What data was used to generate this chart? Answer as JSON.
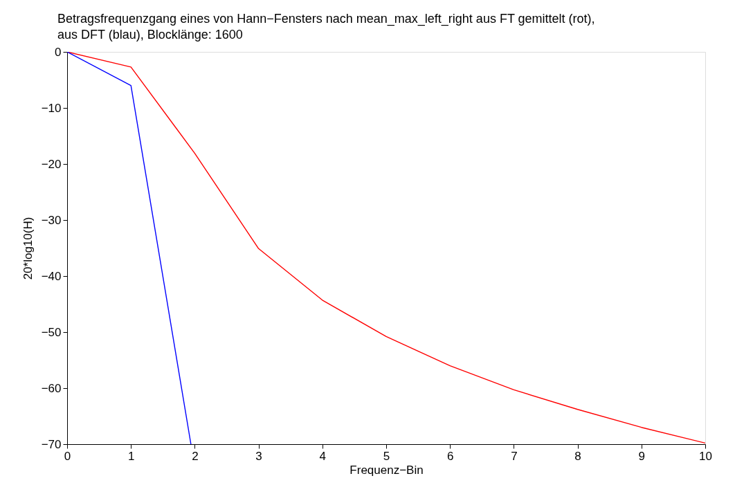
{
  "chart_data": {
    "type": "line",
    "title": "Betragsfrequenzgang eines von Hann−Fensters nach mean_max_left_right aus FT gemittelt (rot),\n aus DFT (blau), Blocklänge: 1600",
    "xlabel": "Frequenz−Bin",
    "ylabel": "20*log10(H)",
    "x": [
      0,
      1,
      2,
      3,
      4,
      5,
      6,
      7,
      8,
      9,
      10
    ],
    "series": [
      {
        "color": "#ff0000",
        "values": [
          0,
          -2.7,
          -18.1,
          -35.1,
          -44.3,
          -50.8,
          -56.0,
          -60.3,
          -63.8,
          -67.0,
          -69.8
        ]
      },
      {
        "color": "#0000ff",
        "x": [
          0,
          1,
          1.94
        ],
        "values": [
          0,
          -6.0,
          -70
        ]
      }
    ],
    "xlim": [
      0,
      10
    ],
    "xticks": [
      0,
      1,
      2,
      3,
      4,
      5,
      6,
      7,
      8,
      9,
      10
    ],
    "ylim": [
      -70,
      0
    ],
    "yticks": [
      -70,
      -60,
      -50,
      -40,
      -30,
      -20,
      -10,
      0
    ],
    "marker": "none",
    "line_style": "solid"
  }
}
